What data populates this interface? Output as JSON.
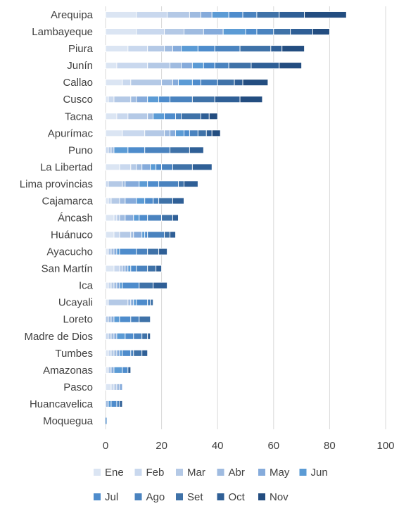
{
  "chart_data": {
    "type": "bar",
    "orientation": "horizontal",
    "stacked": true,
    "categories": [
      "Arequipa",
      "Lambayeque",
      "Piura",
      "Junín",
      "Callao",
      "Cusco",
      "Tacna",
      "Apurímac",
      "Puno",
      "La Libertad",
      "Lima provincias",
      "Cajamarca",
      "Áncash",
      "Huánuco",
      "Ayacucho",
      "San Martín",
      "Ica",
      "Ucayali",
      "Loreto",
      "Madre de Dios",
      "Tumbes",
      "Amazonas",
      "Pasco",
      "Huancavelica",
      "Moquegua"
    ],
    "series": [
      {
        "name": "Ene",
        "color": "#dbe5f3",
        "values": [
          11,
          11,
          8,
          4,
          6,
          1,
          4,
          6,
          0,
          5,
          0,
          1,
          3,
          3,
          1,
          3,
          1,
          1,
          0,
          0,
          1,
          1,
          2,
          0,
          0
        ]
      },
      {
        "name": "Feb",
        "color": "#c9d8ee",
        "values": [
          11,
          10,
          7,
          11,
          3,
          2,
          4,
          8,
          1,
          4,
          1,
          1,
          1,
          2,
          0,
          2,
          1,
          0,
          0,
          1,
          1,
          0,
          1,
          0,
          0
        ]
      },
      {
        "name": "Mar",
        "color": "#b4c9e6",
        "values": [
          8,
          7,
          6,
          8,
          11,
          6,
          7,
          7,
          1,
          2,
          5,
          3,
          1,
          4,
          1,
          1,
          1,
          7,
          1,
          1,
          1,
          1,
          1,
          0,
          0
        ]
      },
      {
        "name": "Abr",
        "color": "#9fbbe0",
        "values": [
          4,
          7,
          3,
          4,
          4,
          2,
          2,
          2,
          1,
          2,
          1,
          2,
          2,
          1,
          1,
          1,
          1,
          1,
          1,
          1,
          1,
          0,
          1,
          1,
          0
        ]
      },
      {
        "name": "May",
        "color": "#85abdb",
        "values": [
          4,
          7,
          3,
          4,
          2,
          4,
          0,
          2,
          0,
          3,
          5,
          4,
          3,
          3,
          1,
          1,
          1,
          1,
          1,
          1,
          1,
          1,
          1,
          0,
          0
        ]
      },
      {
        "name": "Jun",
        "color": "#5b9bd5",
        "values": [
          6,
          8,
          6,
          4,
          5,
          4,
          4,
          3,
          5,
          2,
          3,
          3,
          2,
          1,
          1,
          1,
          1,
          1,
          2,
          3,
          1,
          3,
          0,
          1,
          0
        ]
      },
      {
        "name": "Jul",
        "color": "#4e8ccc",
        "values": [
          5,
          4,
          6,
          4,
          3,
          4,
          4,
          2,
          6,
          2,
          4,
          3,
          3,
          1,
          6,
          2,
          6,
          4,
          4,
          3,
          3,
          2,
          0,
          2,
          0
        ]
      },
      {
        "name": "Ago",
        "color": "#4a83bf",
        "values": [
          5,
          6,
          9,
          5,
          6,
          8,
          2,
          3,
          9,
          4,
          7,
          2,
          5,
          6,
          4,
          4,
          0,
          1,
          3,
          3,
          1,
          0,
          0,
          1,
          0
        ]
      },
      {
        "name": "Set",
        "color": "#3f72a8",
        "values": [
          8,
          6,
          11,
          8,
          6,
          8,
          7,
          3,
          7,
          7,
          2,
          5,
          4,
          2,
          4,
          3,
          5,
          1,
          4,
          2,
          3,
          0,
          0,
          0,
          0
        ]
      },
      {
        "name": "Oct",
        "color": "#2f5f96",
        "values": [
          9,
          8,
          4,
          10,
          3,
          9,
          3,
          2,
          5,
          7,
          5,
          4,
          2,
          2,
          3,
          2,
          5,
          0,
          0,
          1,
          2,
          1,
          0,
          1,
          0
        ]
      },
      {
        "name": "Nov",
        "color": "#234d80",
        "values": [
          15,
          6,
          8,
          8,
          9,
          8,
          3,
          3,
          0,
          0,
          0,
          0,
          0,
          0,
          0,
          0,
          0,
          0,
          0,
          0,
          0,
          0,
          0,
          0,
          0
        ]
      }
    ],
    "xlim": [
      0,
      100
    ],
    "x_ticks": [
      0,
      20,
      40,
      60,
      80,
      100
    ],
    "grid": "vertical",
    "legend_position": "bottom",
    "title": "",
    "xlabel": "",
    "ylabel": ""
  }
}
